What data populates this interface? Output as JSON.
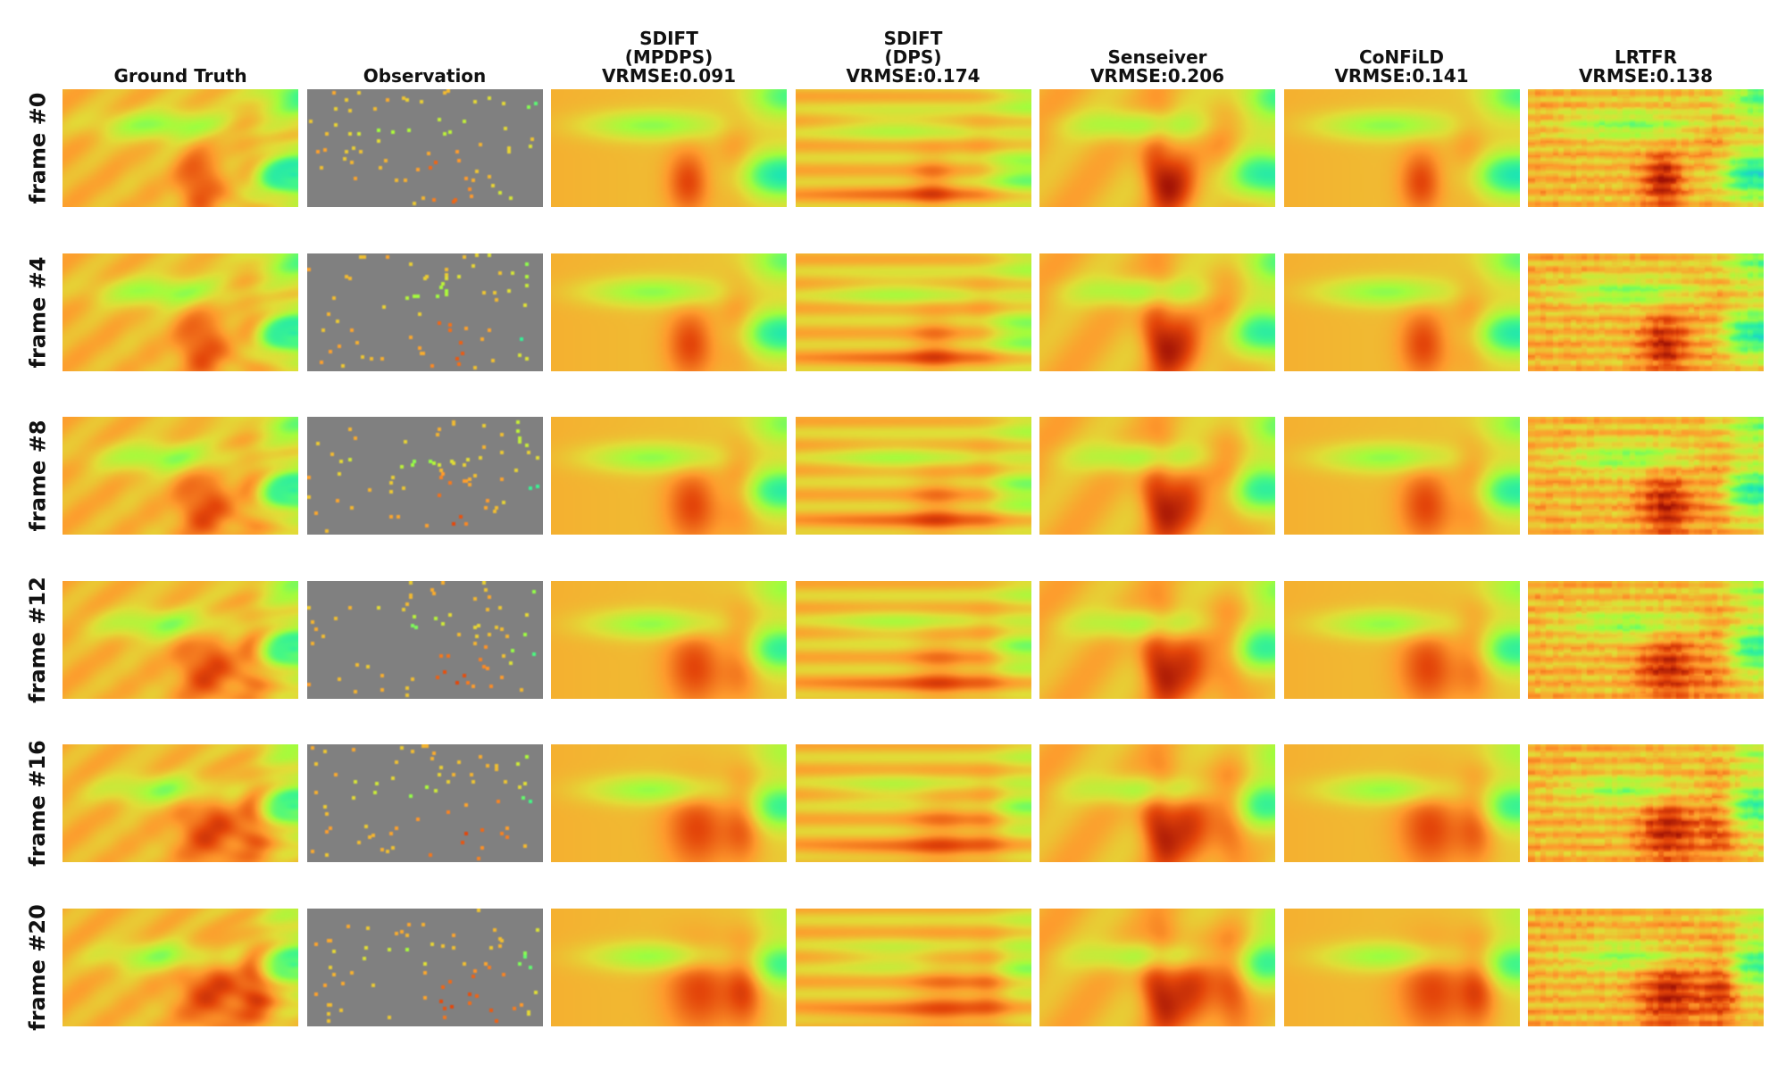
{
  "figure": {
    "columns": [
      {
        "id": "ground-truth",
        "title": "Ground Truth",
        "kind": "field",
        "style": "sharp"
      },
      {
        "id": "observation",
        "title": "Observation",
        "kind": "sparse"
      },
      {
        "id": "sdift-mpdps",
        "title": "SDIFT\n(MPDPS)\nVRMSE:0.091",
        "kind": "field",
        "style": "smooth"
      },
      {
        "id": "sdift-dps",
        "title": "SDIFT\n(DPS)\nVRMSE:0.174",
        "kind": "field",
        "style": "banded"
      },
      {
        "id": "senseiver",
        "title": "Senseiver\nVRMSE:0.206",
        "kind": "field",
        "style": "plume"
      },
      {
        "id": "confild",
        "title": "CoNFiLD\nVRMSE:0.141",
        "kind": "field",
        "style": "smooth"
      },
      {
        "id": "lrtfr",
        "title": "LRTFR\nVRMSE:0.138",
        "kind": "field",
        "style": "blocky"
      }
    ],
    "rows": [
      {
        "label": "frame #0"
      },
      {
        "label": "frame #4"
      },
      {
        "label": "frame #8"
      },
      {
        "label": "frame #12"
      },
      {
        "label": "frame #16"
      },
      {
        "label": "frame #20"
      }
    ],
    "colors": {
      "background": "#ffffff",
      "mask_gray": "#808080",
      "colormap": [
        "#30123b",
        "#3e9bfe",
        "#1ae4b6",
        "#46f884",
        "#a4fc3c",
        "#e1dd37",
        "#fe9b2d",
        "#e4460a",
        "#a01105"
      ]
    }
  }
}
